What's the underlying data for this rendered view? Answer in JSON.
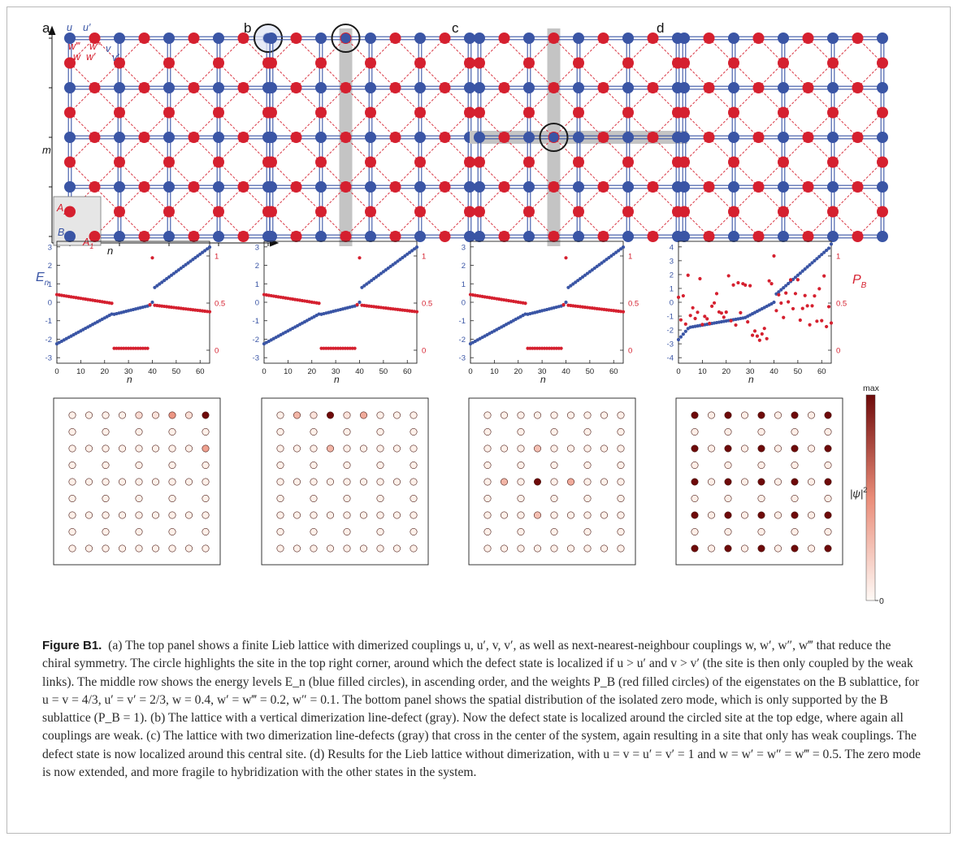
{
  "figure": {
    "panel_letters": [
      "a",
      "b",
      "c",
      "d"
    ],
    "lattice": {
      "coupling_labels_blue": [
        "u",
        "u′",
        "v",
        "v′"
      ],
      "coupling_labels_red": [
        "w‴",
        "w″",
        "w′",
        "w"
      ],
      "axis_labels": {
        "m": "m",
        "n": "n"
      },
      "legend": {
        "a2": "A",
        "a2_sub": "2",
        "b": "B",
        "a1": "A",
        "a1_sub": "1"
      },
      "colors": {
        "blue_site": "#3a55a5",
        "red_site": "#d5202f",
        "defect": "#c4c4c4",
        "highlight": "#1a1a1a"
      }
    },
    "spectrum": {
      "ylabel_left": "E",
      "ylabel_left_sub": "n",
      "ylabel_right": "P",
      "ylabel_right_sub": "B",
      "xlabel": "n",
      "x_ticks": [
        "0",
        "10",
        "20",
        "30",
        "40",
        "50",
        "60"
      ],
      "panels": [
        {
          "left_ticks": [
            "3",
            "2",
            "1",
            "0",
            "-1",
            "-2",
            "-3"
          ],
          "right_ticks": [
            "1",
            "0.5",
            "0"
          ]
        },
        {
          "left_ticks": [
            "3",
            "2",
            "1",
            "0",
            "-1",
            "-2",
            "-3"
          ],
          "right_ticks": [
            "1",
            "0.5",
            "0"
          ]
        },
        {
          "left_ticks": [
            "3",
            "2",
            "1",
            "0",
            "-1",
            "-2",
            "-3"
          ],
          "right_ticks": [
            "1",
            "0.5",
            "0"
          ]
        },
        {
          "left_ticks": [
            "4",
            "3",
            "2",
            "1",
            "0",
            "-1",
            "-2",
            "-3",
            "-4"
          ],
          "right_ticks": [
            "1",
            "0.5",
            "0"
          ]
        }
      ]
    },
    "density": {
      "colorbar_top": "max",
      "colorbar_bottom": "0",
      "colorbar_label": "|ψ|",
      "colorbar_label_sup": "2"
    }
  },
  "caption": {
    "label": "Figure B1.",
    "text": "(a) The top panel shows a finite Lieb lattice with dimerized couplings u, u′, v, v′, as well as next-nearest-neighbour couplings w, w′, w″, w‴ that reduce the chiral symmetry. The circle highlights the site in the top right corner, around which the defect state is localized if u > u′ and v > v′ (the site is then only coupled by the weak links). The middle row shows the energy levels E_n (blue filled circles), in ascending order, and the weights P_B (red filled circles) of the eigenstates on the B sublattice, for u = v = 4/3, u′ = v′ = 2/3, w = 0.4, w′ = w‴ = 0.2, w″ = 0.1. The bottom panel shows the spatial distribution of the isolated zero mode, which is only supported by the B sublattice (P_B = 1). (b) The lattice with a vertical dimerization line-defect (gray). Now the defect state is localized around the circled site at the top edge, where again all couplings are weak. (c) The lattice with two dimerization line-defects (gray) that cross in the center of the system, again resulting in a site that only has weak couplings. The defect state is now localized around this central site. (d) Results for the Lieb lattice without dimerization, with u = v = u′ = v′ = 1 and w = w′ = w″ = w‴ = 0.5. The zero mode is now extended, and more fragile to hybridization with the other states in the system."
  }
}
